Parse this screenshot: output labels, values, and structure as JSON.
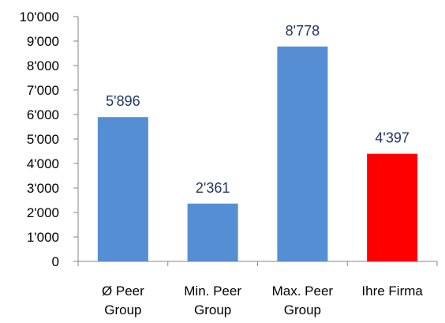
{
  "chart_data": {
    "type": "bar",
    "categories": [
      [
        "Ø Peer",
        "Group"
      ],
      [
        "Min. Peer",
        "Group"
      ],
      [
        "Max. Peer",
        "Group"
      ],
      [
        "Ihre Firma"
      ]
    ],
    "values": [
      5896,
      2361,
      8778,
      4397
    ],
    "data_labels": [
      "5'896",
      "2'361",
      "8'778",
      "4'397"
    ],
    "bar_colors": [
      "#558ed5",
      "#558ed5",
      "#558ed5",
      "#ff0000"
    ],
    "ylim": [
      0,
      10000
    ],
    "yticks": [
      0,
      1000,
      2000,
      3000,
      4000,
      5000,
      6000,
      7000,
      8000,
      9000,
      10000
    ],
    "ytick_labels": [
      "0",
      "1'000",
      "2'000",
      "3'000",
      "4'000",
      "5'000",
      "6'000",
      "7'000",
      "8'000",
      "9'000",
      "10'000"
    ],
    "title": "",
    "xlabel": "",
    "ylabel": "",
    "grid": false,
    "legend": "none"
  }
}
